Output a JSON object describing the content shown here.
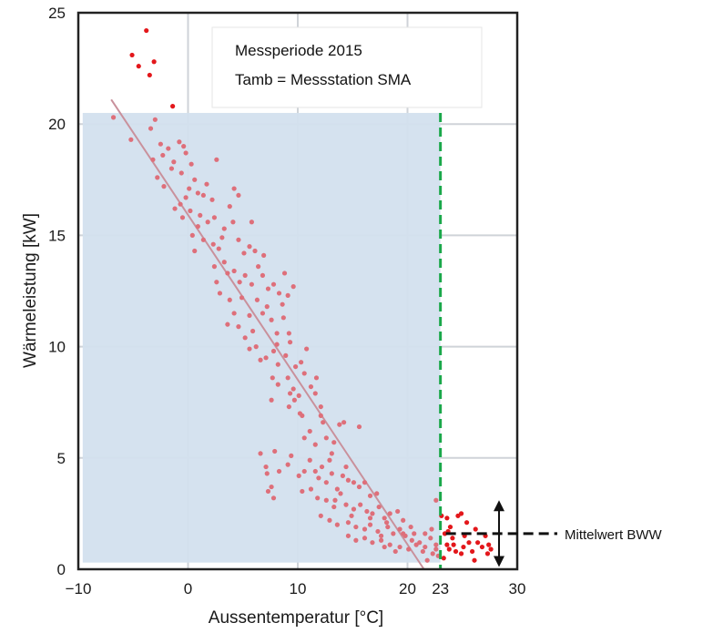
{
  "chart_data": {
    "type": "scatter",
    "xlabel": "Aussentemperatur [°C]",
    "ylabel": "Wärmeleistung [kW]",
    "xlim": [
      -10,
      30
    ],
    "ylim": [
      0,
      25
    ],
    "xticks": [
      -10,
      0,
      10,
      20,
      30
    ],
    "yticks": [
      0,
      5,
      10,
      15,
      20,
      25
    ],
    "grid": true,
    "colors": {
      "heating_points": "#de6f7a",
      "summer_points": "#e3171b",
      "trend_line": "#c9919c",
      "shaded_region": "#d3e0ee",
      "threshold_line": "#1aa84a",
      "threshold_label": "#1aa84a"
    },
    "legend_box": {
      "lines": [
        "Messperiode 2015",
        "Tamb = Messstation SMA"
      ],
      "placement": "top-right"
    },
    "threshold": {
      "x": 23,
      "label": "23"
    },
    "shaded_region": {
      "x": [
        -9.6,
        23
      ],
      "y": [
        0.3,
        20.5
      ]
    },
    "trend_line": {
      "x": [
        -7,
        21.5
      ],
      "y": [
        21.1,
        0
      ]
    },
    "mean_marker": {
      "label": "Mittelwert BWW",
      "y": 1.6,
      "arrow_range": [
        0.1,
        3.1
      ]
    },
    "series": [
      {
        "role": "heating",
        "points": [
          [
            -6.8,
            20.3
          ],
          [
            -5.2,
            19.3
          ],
          [
            -3.4,
            19.8
          ],
          [
            -3,
            20.2
          ],
          [
            -2.5,
            19.1
          ],
          [
            -2.3,
            18.6
          ],
          [
            -1.8,
            18.9
          ],
          [
            -1.3,
            18.3
          ],
          [
            -0.8,
            19.2
          ],
          [
            -0.4,
            19.0
          ],
          [
            -0.2,
            18.7
          ],
          [
            -3.2,
            18.4
          ],
          [
            -2.8,
            17.6
          ],
          [
            -2.2,
            17.2
          ],
          [
            -1.5,
            18.0
          ],
          [
            -0.6,
            17.8
          ],
          [
            0.3,
            18.2
          ],
          [
            -0.7,
            16.4
          ],
          [
            -1.2,
            16.2
          ],
          [
            0.6,
            17.5
          ],
          [
            0.9,
            16.9
          ],
          [
            1.4,
            16.8
          ],
          [
            2.2,
            16.6
          ],
          [
            2.6,
            18.4
          ],
          [
            -0.5,
            15.8
          ],
          [
            0.2,
            16.1
          ],
          [
            1.1,
            15.9
          ],
          [
            1.8,
            15.6
          ],
          [
            2.4,
            15.8
          ],
          [
            0.4,
            15.0
          ],
          [
            0.6,
            14.3
          ],
          [
            0.9,
            15.4
          ],
          [
            1.4,
            14.8
          ],
          [
            2.3,
            14.6
          ],
          [
            2.8,
            14.4
          ],
          [
            3.3,
            15.3
          ],
          [
            4.2,
            17.1
          ],
          [
            4.6,
            16.8
          ],
          [
            3.8,
            16.3
          ],
          [
            4.1,
            15.6
          ],
          [
            4.6,
            14.8
          ],
          [
            5.1,
            14.2
          ],
          [
            5.6,
            14.5
          ],
          [
            6.1,
            14.3
          ],
          [
            3.3,
            13.8
          ],
          [
            2.4,
            13.6
          ],
          [
            2.9,
            12.4
          ],
          [
            3.6,
            13.3
          ],
          [
            4.2,
            13.4
          ],
          [
            4.7,
            12.9
          ],
          [
            5.2,
            13.2
          ],
          [
            5.8,
            12.8
          ],
          [
            6.4,
            13.6
          ],
          [
            6.9,
            14.1
          ],
          [
            6.8,
            13.2
          ],
          [
            7.3,
            12.6
          ],
          [
            7.8,
            12.8
          ],
          [
            8.3,
            12.4
          ],
          [
            8.6,
            11.9
          ],
          [
            9.1,
            12.3
          ],
          [
            9.6,
            12.7
          ],
          [
            7.2,
            11.8
          ],
          [
            6.8,
            11.5
          ],
          [
            7.6,
            11.2
          ],
          [
            8.1,
            10.6
          ],
          [
            8.7,
            11.3
          ],
          [
            9.2,
            10.6
          ],
          [
            3.8,
            12.1
          ],
          [
            4.2,
            11.5
          ],
          [
            3.6,
            11.0
          ],
          [
            4.6,
            10.9
          ],
          [
            5.6,
            11.4
          ],
          [
            5.2,
            10.4
          ],
          [
            5.6,
            9.9
          ],
          [
            6.2,
            10.0
          ],
          [
            6.6,
            9.4
          ],
          [
            7.1,
            9.5
          ],
          [
            7.8,
            9.8
          ],
          [
            8.2,
            9.2
          ],
          [
            8.9,
            9.6
          ],
          [
            9.3,
            10.2
          ],
          [
            9.8,
            9.1
          ],
          [
            10.3,
            9.3
          ],
          [
            7.7,
            8.6
          ],
          [
            8.2,
            8.3
          ],
          [
            9.1,
            8.6
          ],
          [
            9.6,
            8.1
          ],
          [
            10.1,
            7.8
          ],
          [
            9.2,
            7.3
          ],
          [
            9.7,
            7.6
          ],
          [
            10.2,
            7.0
          ],
          [
            10.6,
            8.8
          ],
          [
            11.2,
            8.2
          ],
          [
            11.6,
            7.9
          ],
          [
            12.1,
            7.3
          ],
          [
            12.3,
            6.6
          ],
          [
            11.1,
            6.2
          ],
          [
            10.6,
            5.9
          ],
          [
            11.6,
            5.6
          ],
          [
            12.6,
            5.9
          ],
          [
            13.3,
            5.7
          ],
          [
            13.8,
            6.5
          ],
          [
            14.2,
            6.6
          ],
          [
            15.6,
            6.4
          ],
          [
            7.6,
            7.6
          ],
          [
            6.6,
            5.2
          ],
          [
            7.1,
            4.6
          ],
          [
            7.9,
            5.3
          ],
          [
            8.3,
            4.4
          ],
          [
            9.1,
            4.7
          ],
          [
            9.4,
            5.1
          ],
          [
            10.1,
            4.2
          ],
          [
            10.6,
            4.4
          ],
          [
            11.1,
            4.9
          ],
          [
            11.6,
            4.4
          ],
          [
            12.2,
            4.6
          ],
          [
            12.6,
            3.9
          ],
          [
            13.1,
            4.3
          ],
          [
            13.6,
            3.6
          ],
          [
            14.1,
            4.2
          ],
          [
            14.6,
            4.0
          ],
          [
            15.1,
            3.9
          ],
          [
            15.6,
            3.7
          ],
          [
            16.1,
            3.9
          ],
          [
            16.6,
            3.3
          ],
          [
            17.2,
            3.4
          ],
          [
            7.2,
            4.3
          ],
          [
            7.6,
            3.7
          ],
          [
            7.3,
            3.5
          ],
          [
            7.8,
            3.2
          ],
          [
            10.4,
            3.5
          ],
          [
            11.2,
            3.6
          ],
          [
            11.8,
            3.2
          ],
          [
            12.6,
            3.1
          ],
          [
            13.3,
            2.8
          ],
          [
            13.9,
            3.4
          ],
          [
            14.4,
            2.9
          ],
          [
            15.1,
            2.7
          ],
          [
            15.7,
            2.9
          ],
          [
            16.3,
            2.6
          ],
          [
            16.8,
            2.5
          ],
          [
            17.4,
            2.8
          ],
          [
            17.9,
            2.3
          ],
          [
            18.4,
            2.5
          ],
          [
            19.1,
            2.6
          ],
          [
            19.6,
            2.2
          ],
          [
            12.1,
            2.4
          ],
          [
            12.9,
            2.2
          ],
          [
            13.6,
            2.0
          ],
          [
            14.6,
            2.1
          ],
          [
            15.3,
            1.9
          ],
          [
            16.1,
            1.8
          ],
          [
            16.6,
            2.0
          ],
          [
            17.3,
            1.7
          ],
          [
            17.6,
            1.5
          ],
          [
            18.2,
            1.9
          ],
          [
            18.7,
            1.6
          ],
          [
            19.3,
            1.8
          ],
          [
            19.8,
            1.5
          ],
          [
            20.4,
            1.3
          ],
          [
            21.1,
            1.2
          ],
          [
            21.6,
            1.0
          ],
          [
            22.1,
            1.4
          ],
          [
            22.6,
            1.1
          ],
          [
            22.2,
            1.8
          ],
          [
            22.6,
            3.1
          ],
          [
            14.6,
            1.5
          ],
          [
            15.3,
            1.3
          ],
          [
            16.1,
            1.4
          ],
          [
            16.8,
            1.2
          ],
          [
            17.6,
            1.3
          ],
          [
            18.4,
            1.1
          ],
          [
            19.3,
            1.0
          ],
          [
            20.1,
            0.9
          ],
          [
            20.6,
            1.6
          ],
          [
            21.4,
            0.8
          ],
          [
            22.3,
            0.7
          ],
          [
            22.8,
            0.6
          ],
          [
            21.8,
            0.4
          ],
          [
            18.9,
            0.8
          ],
          [
            20.8,
            1.1
          ],
          [
            0.1,
            17.1
          ],
          [
            1.7,
            17.3
          ],
          [
            -0.2,
            16.7
          ],
          [
            3.1,
            14.9
          ],
          [
            5.8,
            15.6
          ],
          [
            2.6,
            12.9
          ],
          [
            4.9,
            12.2
          ],
          [
            6.3,
            12.1
          ],
          [
            8.8,
            13.3
          ],
          [
            5.9,
            10.7
          ],
          [
            8.1,
            10.1
          ],
          [
            10.8,
            9.9
          ],
          [
            11.7,
            8.6
          ],
          [
            9.3,
            7.9
          ],
          [
            10.4,
            6.9
          ],
          [
            12.1,
            6.9
          ],
          [
            13.1,
            5.2
          ],
          [
            12.9,
            4.9
          ],
          [
            14.4,
            4.6
          ],
          [
            11.9,
            4.1
          ],
          [
            13.4,
            3.1
          ],
          [
            14.9,
            2.4
          ],
          [
            16.6,
            2.3
          ],
          [
            18.1,
            2.1
          ],
          [
            19.6,
            1.6
          ],
          [
            20.3,
            1.9
          ],
          [
            21.6,
            1.6
          ],
          [
            22.6,
            0.9
          ],
          [
            17.9,
            1.0
          ]
        ]
      },
      {
        "role": "summer",
        "points": [
          [
            -5.1,
            23.1
          ],
          [
            -4.5,
            22.6
          ],
          [
            -3.8,
            24.2
          ],
          [
            -3.5,
            22.2
          ],
          [
            -3.1,
            22.8
          ],
          [
            -1.4,
            20.8
          ],
          [
            23.1,
            2.4
          ],
          [
            23.4,
            1.6
          ],
          [
            23.6,
            2.3
          ],
          [
            23.9,
            1.9
          ],
          [
            24.2,
            1.1
          ],
          [
            24.6,
            2.4
          ],
          [
            24.9,
            2.5
          ],
          [
            25.2,
            1.5
          ],
          [
            23.6,
            1.1
          ],
          [
            23.8,
            0.9
          ],
          [
            24.4,
            0.8
          ],
          [
            25.1,
            1.0
          ],
          [
            25.6,
            1.2
          ],
          [
            25.9,
            0.8
          ],
          [
            26.4,
            1.2
          ],
          [
            26.8,
            1.0
          ],
          [
            27.1,
            1.5
          ],
          [
            27.4,
            1.1
          ],
          [
            27.6,
            0.9
          ],
          [
            26.2,
            1.8
          ],
          [
            25.4,
            2.1
          ],
          [
            24.1,
            1.4
          ],
          [
            23.3,
            0.5
          ],
          [
            24.9,
            0.7
          ],
          [
            27.3,
            0.7
          ],
          [
            26.1,
            0.4
          ],
          [
            23.7,
            1.7
          ]
        ]
      }
    ]
  }
}
